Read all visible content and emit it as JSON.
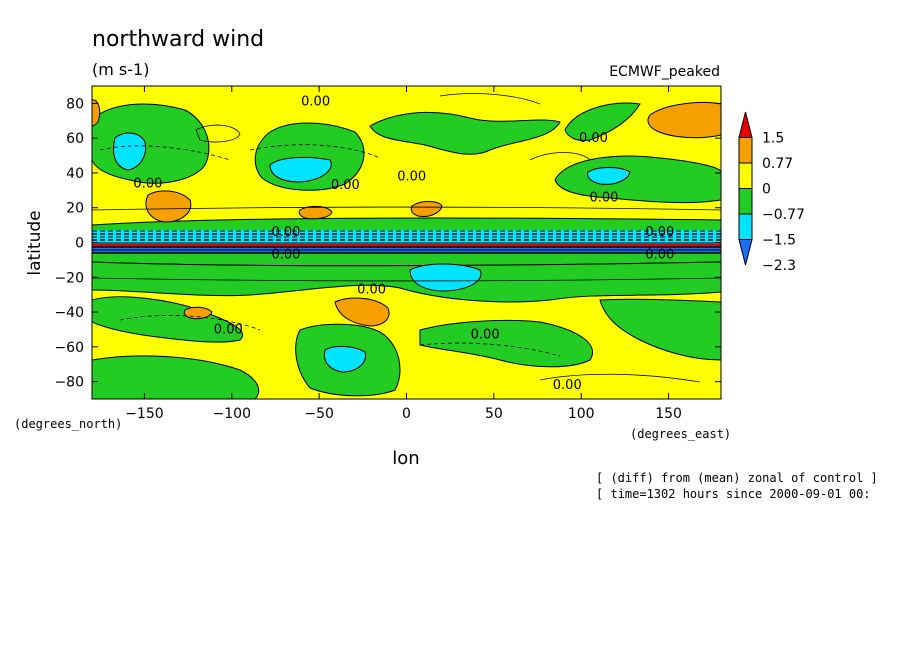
{
  "chart_data": {
    "type": "heatmap",
    "title": "northward wind",
    "units": "(m s-1)",
    "dataset": "ECMWF_peaked",
    "xlabel": "lon",
    "ylabel": "latitude",
    "x_units": "(degrees_east)",
    "y_units": "(degrees_north)",
    "xlim": [
      -180,
      180
    ],
    "ylim": [
      -90,
      90
    ],
    "x_ticks": [
      -150,
      -100,
      -50,
      0,
      50,
      100,
      150
    ],
    "y_ticks": [
      80,
      60,
      40,
      20,
      0,
      -20,
      -40,
      -60,
      -80
    ],
    "colorbar": {
      "levels": [
        -2.3,
        -1.5,
        -0.77,
        0,
        0.77,
        1.5
      ],
      "labels": [
        "1.5",
        "0.77",
        "0",
        "−0.77",
        "−1.5",
        "−2.3"
      ],
      "colors": [
        "#1e6ef0",
        "#00e5ff",
        "#22cc22",
        "#ffff00",
        "#f5a000",
        "#e80000"
      ]
    },
    "contour_labels": [
      {
        "text": "0.00",
        "lon": -52,
        "lat": 81
      },
      {
        "text": "0.00",
        "lon": 3,
        "lat": 38
      },
      {
        "text": "0.00",
        "lon": 107,
        "lat": 60
      },
      {
        "text": "0.00",
        "lon": -148,
        "lat": 34
      },
      {
        "text": "0.00",
        "lon": -35,
        "lat": 33
      },
      {
        "text": "0.00",
        "lon": 113,
        "lat": 26
      },
      {
        "text": "0.00",
        "lon": -69,
        "lat": 6
      },
      {
        "text": "0.00",
        "lon": 145,
        "lat": 6
      },
      {
        "text": "0.00",
        "lon": -69,
        "lat": -7
      },
      {
        "text": "0.00",
        "lon": 145,
        "lat": -7
      },
      {
        "text": "0.00",
        "lon": -20,
        "lat": -27
      },
      {
        "text": "0.00",
        "lon": -102,
        "lat": -50
      },
      {
        "text": "0.00",
        "lon": 45,
        "lat": -53
      },
      {
        "text": "0.00",
        "lon": 92,
        "lat": -82
      }
    ],
    "footnotes": [
      "[ (diff) from (mean) zonal of control ]",
      "[ time=1302 hours since 2000-09-01 00:"
    ]
  }
}
